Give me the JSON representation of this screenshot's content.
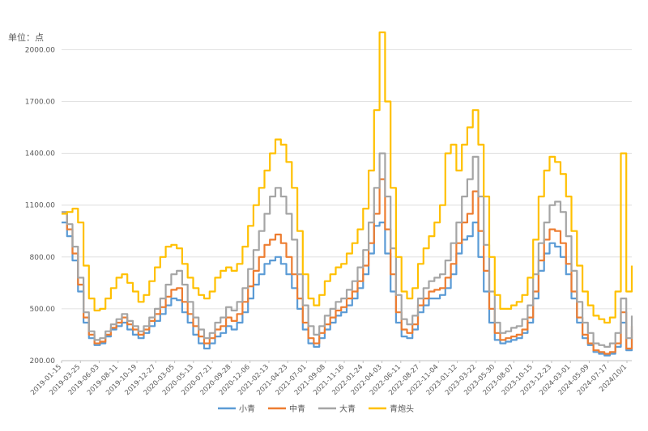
{
  "chart_data": {
    "type": "line",
    "unit_label": "单位：点",
    "ylim": [
      200,
      2100
    ],
    "y_ticks": [
      "200.00",
      "500.00",
      "800.00",
      "1100.00",
      "1400.00",
      "1700.00",
      "2000.00"
    ],
    "y_tick_values": [
      200,
      500,
      800,
      1100,
      1400,
      1700,
      2000
    ],
    "x_ticks": [
      "2019-01-15",
      "2019-03-25",
      "2019-06-03",
      "2019-08-11",
      "2019-10-19",
      "2019-12-27",
      "2020-03-05",
      "2020-05-13",
      "2020-07-21",
      "2020-09-28",
      "2020-12-06",
      "2021-02-13",
      "2021-04-23",
      "2021-07-01",
      "2021-09-08",
      "2021-11-16",
      "2022-01-24",
      "2022-04-03",
      "2022-06-11",
      "2022-08-27",
      "2022-11-04",
      "2023-01-12",
      "2023-03-22",
      "2023-05-30",
      "2023-08-07",
      "2023-10-15",
      "2023-12-23",
      "2024-03-01",
      "2024-05-09",
      "2024-07-17",
      "2024/10/1"
    ],
    "grid": true,
    "legend_position": "bottom",
    "series": [
      {
        "name": "小青",
        "color": "#5b9bd5",
        "values": [
          1000,
          920,
          780,
          600,
          420,
          330,
          290,
          300,
          340,
          380,
          400,
          420,
          380,
          350,
          330,
          360,
          400,
          430,
          470,
          520,
          560,
          550,
          480,
          420,
          350,
          300,
          270,
          300,
          340,
          360,
          400,
          380,
          420,
          480,
          560,
          640,
          700,
          760,
          780,
          800,
          760,
          700,
          620,
          500,
          380,
          300,
          280,
          330,
          380,
          420,
          460,
          480,
          520,
          560,
          620,
          700,
          820,
          980,
          1000,
          820,
          600,
          420,
          340,
          330,
          380,
          480,
          520,
          560,
          560,
          580,
          620,
          700,
          820,
          900,
          920,
          1000,
          800,
          600,
          420,
          320,
          300,
          310,
          320,
          330,
          360,
          420,
          560,
          720,
          820,
          880,
          860,
          800,
          700,
          560,
          420,
          330,
          290,
          250,
          240,
          230,
          240,
          280,
          420,
          260,
          380
        ]
      },
      {
        "name": "中青",
        "color": "#ed7d31",
        "values": [
          1050,
          960,
          820,
          640,
          450,
          350,
          300,
          310,
          350,
          390,
          420,
          450,
          410,
          380,
          350,
          380,
          430,
          470,
          510,
          570,
          610,
          620,
          540,
          470,
          400,
          340,
          300,
          330,
          380,
          400,
          450,
          430,
          470,
          540,
          630,
          720,
          800,
          870,
          900,
          930,
          880,
          800,
          700,
          560,
          420,
          330,
          300,
          360,
          410,
          450,
          490,
          510,
          560,
          600,
          660,
          750,
          880,
          1050,
          1250,
          960,
          700,
          480,
          380,
          360,
          410,
          520,
          560,
          600,
          610,
          620,
          680,
          760,
          880,
          1000,
          1050,
          1180,
          950,
          720,
          500,
          360,
          320,
          330,
          340,
          350,
          380,
          450,
          600,
          780,
          900,
          960,
          950,
          880,
          760,
          600,
          450,
          350,
          300,
          260,
          250,
          240,
          250,
          300,
          480,
          270,
          400
        ]
      },
      {
        "name": "大青",
        "color": "#a5a5a5",
        "values": [
          1060,
          990,
          860,
          680,
          480,
          370,
          320,
          330,
          370,
          410,
          440,
          470,
          430,
          400,
          370,
          400,
          450,
          500,
          560,
          640,
          700,
          720,
          640,
          540,
          450,
          380,
          330,
          360,
          420,
          450,
          510,
          490,
          540,
          620,
          730,
          840,
          950,
          1050,
          1150,
          1200,
          1150,
          1050,
          900,
          700,
          520,
          400,
          350,
          400,
          460,
          500,
          540,
          560,
          610,
          660,
          740,
          840,
          1000,
          1200,
          1400,
          1150,
          850,
          580,
          440,
          410,
          460,
          560,
          620,
          660,
          680,
          700,
          780,
          880,
          1000,
          1150,
          1250,
          1380,
          1150,
          870,
          600,
          420,
          360,
          370,
          390,
          400,
          440,
          520,
          700,
          880,
          1000,
          1100,
          1120,
          1060,
          920,
          720,
          540,
          420,
          360,
          300,
          290,
          280,
          300,
          360,
          560,
          330,
          460
        ]
      },
      {
        "name": "青炮头",
        "color": "#ffc000",
        "values": [
          1050,
          1060,
          1080,
          1000,
          750,
          560,
          490,
          500,
          560,
          620,
          680,
          700,
          650,
          600,
          540,
          580,
          660,
          740,
          800,
          860,
          870,
          850,
          760,
          680,
          620,
          580,
          560,
          600,
          680,
          720,
          740,
          720,
          760,
          860,
          980,
          1100,
          1200,
          1300,
          1400,
          1480,
          1450,
          1350,
          1200,
          950,
          700,
          560,
          520,
          580,
          660,
          700,
          740,
          760,
          820,
          880,
          960,
          1080,
          1300,
          1650,
          2100,
          1700,
          1200,
          800,
          600,
          560,
          620,
          760,
          850,
          920,
          1000,
          1100,
          1400,
          1450,
          1300,
          1450,
          1550,
          1650,
          1450,
          1150,
          800,
          580,
          500,
          500,
          520,
          540,
          580,
          680,
          900,
          1150,
          1300,
          1380,
          1350,
          1280,
          1150,
          950,
          750,
          600,
          520,
          460,
          440,
          420,
          450,
          600,
          1400,
          600,
          750
        ]
      }
    ]
  }
}
